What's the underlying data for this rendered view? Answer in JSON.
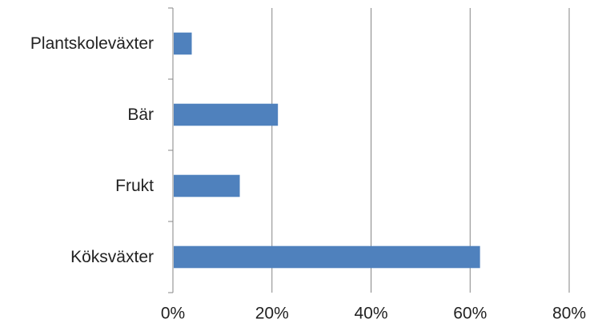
{
  "chart_data": {
    "type": "bar",
    "orientation": "horizontal",
    "categories": [
      "Köksväxter",
      "Frukt",
      "Bär",
      "Plantskoleväxter"
    ],
    "values": [
      0.62,
      0.135,
      0.212,
      0.038
    ],
    "xlim": [
      0,
      0.8
    ],
    "xticks": [
      0,
      0.2,
      0.4,
      0.6,
      0.8
    ],
    "xtick_labels": [
      "0%",
      "20%",
      "40%",
      "60%",
      "80%"
    ],
    "grid": "vertical",
    "legend": "none",
    "colors": {
      "bar": "#4F81BD",
      "grid": "#868686",
      "axis": "#868686"
    }
  }
}
